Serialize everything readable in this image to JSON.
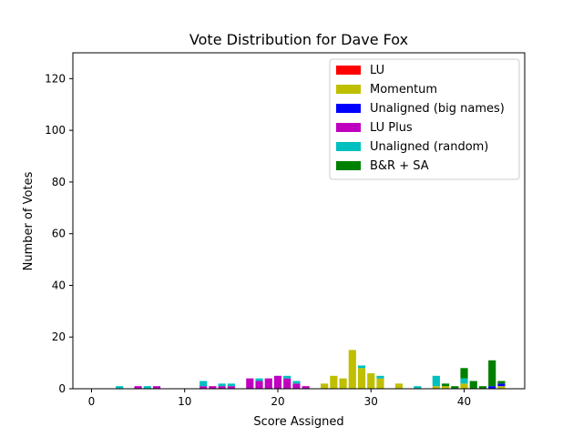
{
  "chart_data": {
    "type": "bar",
    "stacked": true,
    "title": "Vote Distribution for Dave Fox",
    "xlabel": "Score Assigned",
    "ylabel": "Number of Votes",
    "xlim": [
      -2,
      46.5
    ],
    "ylim": [
      0,
      130
    ],
    "xticks": [
      0,
      10,
      20,
      30,
      40
    ],
    "yticks": [
      0,
      20,
      40,
      60,
      80,
      100,
      120
    ],
    "grid": false,
    "legend_position": "top-right",
    "x": [
      3,
      5,
      6,
      7,
      12,
      13,
      14,
      15,
      17,
      18,
      19,
      20,
      21,
      22,
      23,
      25,
      26,
      27,
      28,
      29,
      30,
      31,
      33,
      35,
      37,
      38,
      39,
      40,
      41,
      42,
      43,
      44
    ],
    "series": [
      {
        "name": "LU",
        "color": "#ff0000",
        "values": [
          0,
          0,
          0,
          0,
          0,
          0,
          0,
          0,
          0,
          0,
          0,
          0,
          0,
          0,
          0,
          0,
          0,
          0,
          0,
          0,
          0,
          0,
          0,
          0,
          0,
          0,
          0,
          0,
          0,
          0,
          0,
          0
        ]
      },
      {
        "name": "Momentum",
        "color": "#bfbf00",
        "values": [
          0,
          0,
          0,
          0,
          0,
          0,
          0,
          0,
          0,
          0,
          0,
          0,
          0,
          0,
          0,
          2,
          5,
          4,
          15,
          8,
          6,
          4,
          2,
          0,
          1,
          1,
          0,
          2,
          0,
          0,
          0,
          1
        ]
      },
      {
        "name": "Unaligned (big names)",
        "color": "#0000ff",
        "values": [
          0,
          0,
          0,
          0,
          0,
          0,
          0,
          0,
          0,
          0,
          0,
          0,
          0,
          0,
          0,
          0,
          0,
          0,
          0,
          0,
          0,
          0,
          0,
          0,
          0,
          0,
          0,
          0,
          0,
          0,
          1,
          1
        ]
      },
      {
        "name": "LU Plus",
        "color": "#bf00bf",
        "values": [
          0,
          1,
          0,
          1,
          1,
          1,
          1,
          1,
          4,
          3,
          4,
          5,
          4,
          2,
          1,
          0,
          0,
          0,
          0,
          0,
          0,
          0,
          0,
          0,
          0,
          0,
          0,
          0,
          0,
          0,
          0,
          0
        ]
      },
      {
        "name": "Unaligned (random)",
        "color": "#00bfbf",
        "values": [
          1,
          0,
          1,
          0,
          2,
          0,
          1,
          1,
          0,
          1,
          0,
          0,
          1,
          1,
          0,
          0,
          0,
          0,
          0,
          1,
          0,
          1,
          0,
          1,
          4,
          0,
          0,
          2,
          0,
          0,
          0,
          0
        ]
      },
      {
        "name": "B&R + SA",
        "color": "#008000",
        "values": [
          0,
          0,
          0,
          0,
          0,
          0,
          0,
          0,
          0,
          0,
          0,
          0,
          0,
          0,
          0,
          0,
          0,
          0,
          0,
          0,
          0,
          0,
          0,
          0,
          0,
          1,
          1,
          4,
          3,
          1,
          10,
          1
        ]
      }
    ]
  }
}
